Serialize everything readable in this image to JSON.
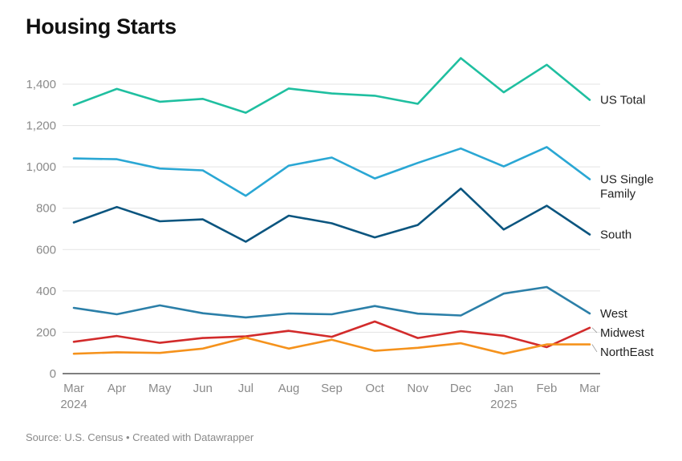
{
  "title": "Housing Starts",
  "source": "Source: U.S. Census • Created with Datawrapper",
  "chart_data": {
    "type": "line",
    "x": [
      "Mar 2024",
      "Apr",
      "May",
      "Jun",
      "Jul",
      "Aug",
      "Sep",
      "Oct",
      "Nov",
      "Dec",
      "Jan 2025",
      "Feb",
      "Mar"
    ],
    "x_ticks": [
      {
        "line1": "Mar",
        "line2": "2024"
      },
      {
        "line1": "Apr",
        "line2": ""
      },
      {
        "line1": "May",
        "line2": ""
      },
      {
        "line1": "Jun",
        "line2": ""
      },
      {
        "line1": "Jul",
        "line2": ""
      },
      {
        "line1": "Aug",
        "line2": ""
      },
      {
        "line1": "Sep",
        "line2": ""
      },
      {
        "line1": "Oct",
        "line2": ""
      },
      {
        "line1": "Nov",
        "line2": ""
      },
      {
        "line1": "Dec",
        "line2": ""
      },
      {
        "line1": "Jan",
        "line2": "2025"
      },
      {
        "line1": "Feb",
        "line2": ""
      },
      {
        "line1": "Mar",
        "line2": ""
      }
    ],
    "y_ticks": [
      "0",
      "200",
      "400",
      "600",
      "800",
      "1,000",
      "1,200",
      "1,400"
    ],
    "ylim": [
      0,
      1560
    ],
    "grid": true,
    "legend": "direct labels at line ends",
    "series": [
      {
        "name": "US Total",
        "label_lines": [
          "US Total"
        ],
        "color": "#1fbfa0",
        "values": [
          1299,
          1377,
          1315,
          1329,
          1262,
          1379,
          1355,
          1344,
          1305,
          1526,
          1361,
          1494,
          1324
        ]
      },
      {
        "name": "US Single Family",
        "label_lines": [
          "US Single",
          "Family"
        ],
        "color": "#2aa7d4",
        "values": [
          1041,
          1037,
          992,
          983,
          860,
          1006,
          1045,
          944,
          1019,
          1089,
          1002,
          1096,
          940
        ]
      },
      {
        "name": "South",
        "label_lines": [
          "South"
        ],
        "color": "#0b557f",
        "values": [
          731,
          806,
          737,
          746,
          638,
          764,
          727,
          659,
          719,
          895,
          697,
          812,
          673
        ]
      },
      {
        "name": "West",
        "label_lines": [
          "West"
        ],
        "color": "#2b7fa8",
        "values": [
          318,
          287,
          330,
          292,
          272,
          291,
          287,
          327,
          290,
          281,
          387,
          419,
          291
        ]
      },
      {
        "name": "Midwest",
        "label_lines": [
          "Midwest"
        ],
        "color": "#d22b2b",
        "values": [
          154,
          182,
          149,
          172,
          180,
          207,
          178,
          252,
          172,
          205,
          183,
          128,
          222
        ]
      },
      {
        "name": "NorthEast",
        "label_lines": [
          "NorthEast"
        ],
        "color": "#f5921c",
        "values": [
          96,
          103,
          100,
          121,
          174,
          121,
          164,
          110,
          125,
          147,
          96,
          141,
          141
        ]
      }
    ]
  }
}
